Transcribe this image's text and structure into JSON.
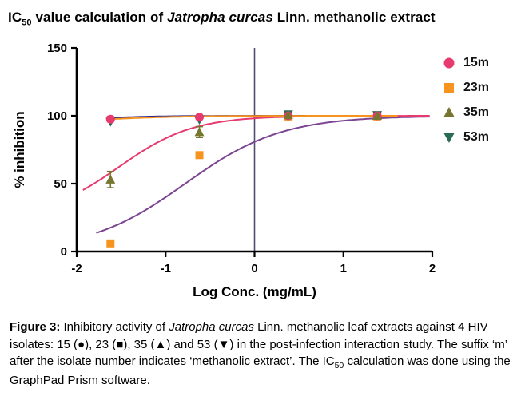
{
  "title": {
    "prefix": "IC",
    "subscript": "50",
    "middle": " value calculation of ",
    "italic": "Jatropha curcas",
    "suffix": " Linn. methanolic extract"
  },
  "caption": {
    "label": "Figure 3:",
    "part1": " Inhibitory activity of ",
    "italic": "Jatropha curcas",
    "part2": " Linn. methanolic leaf extracts against 4 HIV isolates: 15 (●), 23 (■), 35 (▲) and 53 (▼) in the post-infection interaction study. The suffix ‘m’ after the isolate number indicates ‘methanolic extract’. The IC",
    "subscript": "50",
    "part3": " calculation was done using the GraphPad Prism software."
  },
  "chart_data": {
    "type": "scatter",
    "title": "",
    "xlabel": "Log Conc. (mg/mL)",
    "ylabel": "% inhibition",
    "xlim": [
      -2,
      2
    ],
    "ylim": [
      0,
      150
    ],
    "xticks": [
      -2,
      -1,
      0,
      1,
      2
    ],
    "yticks": [
      0,
      50,
      100,
      150
    ],
    "vline_x": 0,
    "vline_color": "#50506e",
    "legend_position": "right",
    "series": [
      {
        "name": "15m",
        "marker": "circle",
        "marker_color": "#e73a6e",
        "curve_color": "#2b2b8f",
        "points": [
          {
            "x": -1.62,
            "y": 97.5,
            "err": 2
          },
          {
            "x": -0.62,
            "y": 99,
            "err": 1
          },
          {
            "x": 0.38,
            "y": 100,
            "err": 1
          },
          {
            "x": 1.38,
            "y": 100,
            "err": 1
          }
        ],
        "fit": {
          "bottom": 95.5,
          "top": 100,
          "logec50": -1.85,
          "hill": 1.2,
          "range": [
            -1.66,
            1.62
          ]
        }
      },
      {
        "name": "23m",
        "marker": "square",
        "marker_color": "#f79420",
        "curve_color": "#7b4591",
        "points": [
          {
            "x": -1.62,
            "y": 6,
            "err": 1
          },
          {
            "x": -0.62,
            "y": 71,
            "err": 1
          },
          {
            "x": 0.38,
            "y": 99.5,
            "err": 1
          },
          {
            "x": 1.38,
            "y": 99.5,
            "err": 1
          }
        ],
        "fit": {
          "bottom": 0,
          "top": 100,
          "logec50": -0.78,
          "hill": 0.8,
          "range": [
            -1.78,
            1.97
          ]
        }
      },
      {
        "name": "35m",
        "marker": "triangle-up",
        "marker_color": "#76762f",
        "curve_color": "#e73a6e",
        "points": [
          {
            "x": -1.62,
            "y": 53,
            "err": 6
          },
          {
            "x": -0.62,
            "y": 88,
            "err": 4
          },
          {
            "x": 0.38,
            "y": 100.5,
            "err": 2
          },
          {
            "x": 1.38,
            "y": 100,
            "err": 1.5
          }
        ],
        "fit": {
          "bottom": 25,
          "top": 100,
          "logec50": -1.52,
          "hill": 1.05,
          "range": [
            -1.93,
            1.97
          ]
        }
      },
      {
        "name": "53m",
        "marker": "triangle-down",
        "marker_color": "#2a6b57",
        "curve_color": "#f79420",
        "points": [
          {
            "x": -1.62,
            "y": 95.5,
            "err": 1
          },
          {
            "x": -0.62,
            "y": 97,
            "err": 1
          },
          {
            "x": 0.38,
            "y": 101,
            "err": 1
          },
          {
            "x": 1.38,
            "y": 100.5,
            "err": 1
          }
        ],
        "fit": {
          "bottom": 94.5,
          "top": 100,
          "logec50": -1.7,
          "hill": 1.0,
          "range": [
            -1.66,
            1.62
          ]
        }
      }
    ]
  }
}
